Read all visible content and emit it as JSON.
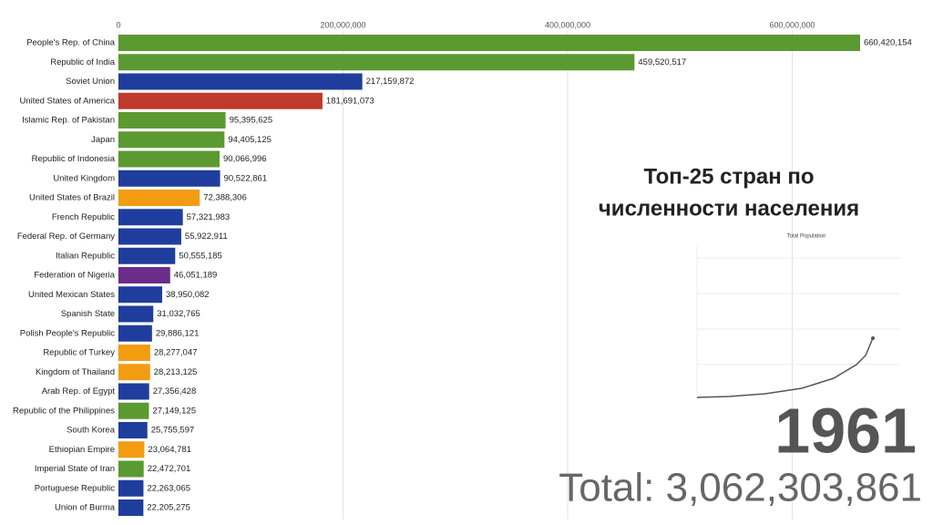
{
  "chart_data": {
    "type": "barh",
    "title": [
      "Топ-25 стран по",
      "численности населения"
    ],
    "inset_title": "Total Population",
    "year_label": "1961",
    "total_label": "Total: 3,062,303,861",
    "categories": [
      "People's Rep. of China",
      "Republic of India",
      "Soviet Union",
      "United States of America",
      "Islamic Rep. of Pakistan",
      "Japan",
      "Republic of Indonesia",
      "United Kingdom",
      "United States of Brazil",
      "French Republic",
      "Federal Rep. of Germany",
      "Italian Republic",
      "Federation of Nigeria",
      "United Mexican States",
      "Spanish State",
      "Polish People's Republic",
      "Republic of Turkey",
      "Kingdom of Thailand",
      "Arab Rep. of Egypt",
      "Republic of the Philippines",
      "South Korea",
      "Ethiopian Empire",
      "Imperial State of Iran",
      "Portuguese Republic",
      "Union of Burma"
    ],
    "values": [
      660420154,
      459520517,
      217159872,
      181691073,
      95395625,
      94405125,
      90066996,
      90522861,
      72388306,
      57321983,
      55922911,
      50555185,
      46051189,
      38950082,
      31032765,
      29886121,
      28277047,
      28213125,
      27356428,
      27149125,
      25755597,
      23064781,
      22472701,
      22263065,
      22205275
    ],
    "value_labels": [
      "660,420,154",
      "459,520,517",
      "217,159,872",
      "181,691,073",
      "95,395,625",
      "94,405,125",
      "90,066,996",
      "90,522,861",
      "72,388,306",
      "57,321,983",
      "55,922,911",
      "50,555,185",
      "46,051,189",
      "38,950,082",
      "31,032,765",
      "29,886,121",
      "28,277,047",
      "28,213,125",
      "27,356,428",
      "27,149,125",
      "25,755,597",
      "23,064,781",
      "22,472,701",
      "22,263,065",
      "22,205,275"
    ],
    "colors": [
      "#5b9a30",
      "#5b9a30",
      "#1f3d9c",
      "#c0392b",
      "#5b9a30",
      "#5b9a30",
      "#5b9a30",
      "#1f3d9c",
      "#f39c12",
      "#1f3d9c",
      "#1f3d9c",
      "#1f3d9c",
      "#6a2d8a",
      "#1f3d9c",
      "#1f3d9c",
      "#1f3d9c",
      "#f39c12",
      "#f39c12",
      "#1f3d9c",
      "#5b9a30",
      "#1f3d9c",
      "#f39c12",
      "#5b9a30",
      "#1f3d9c",
      "#1f3d9c"
    ],
    "xlim": [
      0,
      700000000
    ],
    "xticks": [
      0,
      {
        "value": 200000000,
        "label": "200,000,000"
      },
      {
        "value": 400000000,
        "label": "400,000,000"
      },
      {
        "value": 600000000,
        "label": "600,000,000"
      }
    ],
    "grid": true
  }
}
